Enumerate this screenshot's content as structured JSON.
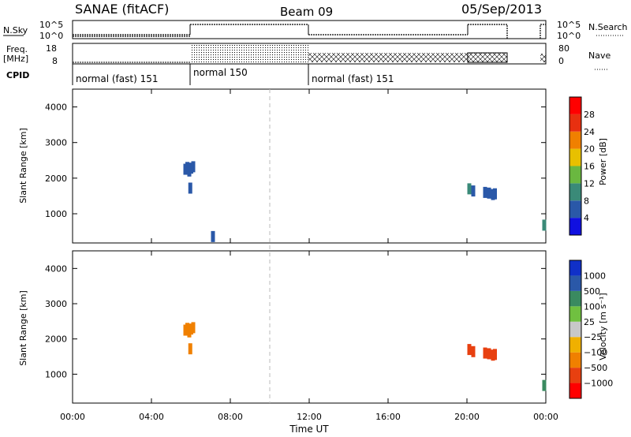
{
  "header": {
    "station": "SANAE (fitACF)",
    "beam": "Beam 09",
    "date": "05/Sep/2013"
  },
  "status_panels": {
    "nsky_label": "N.Sky",
    "nsearch_label": "N.Search",
    "freq_label_1": "Freq.",
    "freq_label_2": "[MHz]",
    "nave_label": "Nave",
    "cpid_label": "CPID",
    "nsky_ticks": [
      "10^5",
      "10^0"
    ],
    "nsearch_ticks": [
      "10^5",
      "10^0"
    ],
    "freq_ticks": [
      "18",
      "8"
    ],
    "nave_ticks": [
      "80",
      "0"
    ],
    "cpid_segments": [
      {
        "label": "normal (fast) 151",
        "start_hr": 0,
        "end_hr": 6
      },
      {
        "label": "normal 150",
        "start_hr": 6,
        "end_hr": 12
      },
      {
        "label": "normal (fast) 151",
        "start_hr": 12,
        "end_hr": 24
      }
    ],
    "data_gaps_hr": [
      [
        22.0,
        23.8
      ]
    ]
  },
  "x_axis": {
    "label": "Time UT",
    "ticks": [
      "00:00",
      "04:00",
      "08:00",
      "12:00",
      "16:00",
      "20:00",
      "00:00"
    ],
    "range_hr": [
      0,
      24
    ],
    "dashed_marker_hr": 10
  },
  "chart_data": [
    {
      "type": "scatter",
      "panel": "power",
      "ylabel": "Slant Range [km]",
      "ylim": [
        180,
        4500
      ],
      "yticks": [
        "1000",
        "2000",
        "3000",
        "4000"
      ],
      "colorbar": {
        "label": "Power [dB]",
        "ticks": [
          "4",
          "8",
          "12",
          "16",
          "20",
          "24",
          "28"
        ],
        "colors": [
          "#1010e0",
          "#2a58a8",
          "#3a8a78",
          "#6ab840",
          "#e8c000",
          "#f08000",
          "#e83010",
          "#ff0000"
        ]
      },
      "points": [
        {
          "t": 5.7,
          "r": 2250,
          "v": 6
        },
        {
          "t": 5.8,
          "r": 2300,
          "v": 5
        },
        {
          "t": 5.9,
          "r": 2200,
          "v": 7
        },
        {
          "t": 6.0,
          "r": 2280,
          "v": 6
        },
        {
          "t": 6.1,
          "r": 2320,
          "v": 5
        },
        {
          "t": 5.95,
          "r": 1720,
          "v": 4
        },
        {
          "t": 7.1,
          "r": 360,
          "v": 4
        },
        {
          "t": 20.1,
          "r": 1700,
          "v": 8
        },
        {
          "t": 20.3,
          "r": 1640,
          "v": 6
        },
        {
          "t": 20.9,
          "r": 1600,
          "v": 6
        },
        {
          "t": 21.1,
          "r": 1580,
          "v": 6
        },
        {
          "t": 21.3,
          "r": 1540,
          "v": 5
        },
        {
          "t": 21.4,
          "r": 1560,
          "v": 4
        },
        {
          "t": 23.9,
          "r": 680,
          "v": 10
        }
      ]
    },
    {
      "type": "scatter",
      "panel": "velocity",
      "ylabel": "Slant Range [km]",
      "ylim": [
        180,
        4500
      ],
      "yticks": [
        "1000",
        "2000",
        "3000",
        "4000"
      ],
      "colorbar": {
        "label": "Velocity [m s⁻¹]",
        "ticks": [
          "1000",
          "500",
          "100",
          "25",
          "−25",
          "−100",
          "−500",
          "−1000"
        ],
        "colors": [
          "#1030c8",
          "#2a58a8",
          "#3a8a60",
          "#70c040",
          "#c8c8c8",
          "#f0b000",
          "#f08000",
          "#e84010",
          "#ff0000"
        ]
      },
      "points": [
        {
          "t": 5.7,
          "r": 2250,
          "v": -300
        },
        {
          "t": 5.8,
          "r": 2300,
          "v": -250
        },
        {
          "t": 5.9,
          "r": 2200,
          "v": -200
        },
        {
          "t": 6.0,
          "r": 2280,
          "v": -300
        },
        {
          "t": 6.1,
          "r": 2320,
          "v": -250
        },
        {
          "t": 5.95,
          "r": 1720,
          "v": -200
        },
        {
          "t": 20.1,
          "r": 1700,
          "v": -900
        },
        {
          "t": 20.3,
          "r": 1640,
          "v": -700
        },
        {
          "t": 20.9,
          "r": 1600,
          "v": -600
        },
        {
          "t": 21.1,
          "r": 1580,
          "v": -600
        },
        {
          "t": 21.3,
          "r": 1540,
          "v": -800
        },
        {
          "t": 21.4,
          "r": 1560,
          "v": -700
        },
        {
          "t": 23.9,
          "r": 680,
          "v": 150
        }
      ]
    }
  ]
}
